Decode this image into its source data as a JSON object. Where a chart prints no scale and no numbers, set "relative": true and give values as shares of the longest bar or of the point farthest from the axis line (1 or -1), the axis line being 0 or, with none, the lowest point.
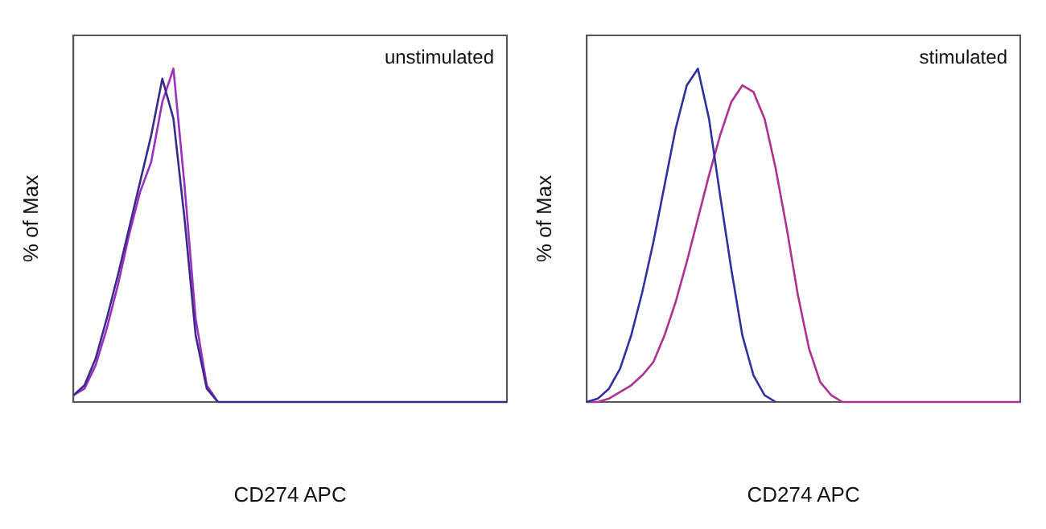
{
  "chart_data": [
    {
      "type": "line",
      "relative": true,
      "grid": false,
      "legend": false,
      "marker": "none",
      "line_style": "solid",
      "xlabel": "CD274 APC",
      "ylabel": "% of Max",
      "annotations": [
        "unstimulated"
      ],
      "categories": [
        null,
        null,
        null,
        null,
        null,
        null,
        null,
        null,
        null,
        null,
        null,
        null,
        null,
        null,
        null,
        null,
        null,
        null,
        null,
        null,
        null,
        null,
        null,
        null,
        null,
        null,
        null,
        null,
        null,
        null,
        null,
        null,
        null,
        null,
        null,
        null,
        null,
        null,
        null,
        null
      ],
      "series": [
        {
          "color": "#3a2a8a",
          "values": [
            0.02,
            0.05,
            0.13,
            0.25,
            0.38,
            0.52,
            0.66,
            0.8,
            0.97,
            0.85,
            0.55,
            0.2,
            0.04,
            0,
            0,
            0,
            0,
            0,
            0,
            0,
            0,
            0,
            0,
            0,
            0,
            0,
            0,
            0,
            0,
            0,
            0,
            0,
            0,
            0,
            0,
            0,
            0,
            0,
            0,
            0
          ]
        },
        {
          "color": "#9b30c0",
          "values": [
            0.02,
            0.04,
            0.11,
            0.22,
            0.35,
            0.5,
            0.63,
            0.72,
            0.9,
            1,
            0.65,
            0.25,
            0.05,
            0,
            null,
            null,
            null,
            null,
            null,
            null,
            null,
            null,
            null,
            null,
            null,
            null,
            null,
            null,
            null,
            null,
            null,
            null,
            null,
            null,
            null,
            null,
            null,
            null,
            null,
            null
          ]
        }
      ]
    },
    {
      "type": "line",
      "relative": true,
      "grid": false,
      "legend": false,
      "marker": "none",
      "line_style": "solid",
      "xlabel": "CD274 APC",
      "ylabel": "% of Max",
      "annotations": [
        "stimulated"
      ],
      "categories": [
        null,
        null,
        null,
        null,
        null,
        null,
        null,
        null,
        null,
        null,
        null,
        null,
        null,
        null,
        null,
        null,
        null,
        null,
        null,
        null,
        null,
        null,
        null,
        null,
        null,
        null,
        null,
        null,
        null,
        null,
        null,
        null,
        null,
        null,
        null,
        null,
        null,
        null,
        null,
        null
      ],
      "series": [
        {
          "color": "#3030a0",
          "values": [
            0,
            0.01,
            0.04,
            0.1,
            0.2,
            0.33,
            0.48,
            0.65,
            0.82,
            0.95,
            1,
            0.85,
            0.62,
            0.4,
            0.2,
            0.08,
            0.02,
            0,
            null,
            null,
            null,
            null,
            null,
            null,
            null,
            null,
            null,
            null,
            null,
            null,
            null,
            null,
            null,
            null,
            null,
            null,
            null,
            null,
            null,
            null
          ]
        },
        {
          "color": "#b03090",
          "values": [
            0,
            0,
            0.01,
            0.03,
            0.05,
            0.08,
            0.12,
            0.2,
            0.3,
            0.42,
            0.55,
            0.68,
            0.8,
            0.9,
            0.95,
            0.93,
            0.85,
            0.7,
            0.52,
            0.32,
            0.16,
            0.06,
            0.02,
            0,
            0,
            0,
            0,
            0,
            0,
            0,
            0,
            0,
            0,
            0,
            0,
            0,
            0,
            0,
            0,
            0
          ]
        }
      ]
    }
  ]
}
